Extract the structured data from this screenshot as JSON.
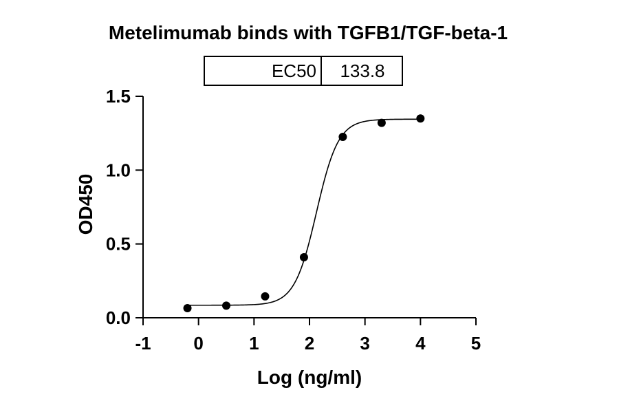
{
  "chart_data": {
    "type": "scatter",
    "title": "Metelimumab binds with TGFB1/TGF-beta-1",
    "xlabel": "Log (ng/ml)",
    "ylabel": "OD450",
    "xlim": [
      -1,
      5
    ],
    "ylim": [
      0,
      1.5
    ],
    "x_ticks": [
      "-1",
      "0",
      "1",
      "2",
      "3",
      "4",
      "5"
    ],
    "y_ticks": [
      "0.0",
      "0.5",
      "1.0",
      "1.5"
    ],
    "points": {
      "x": [
        -0.2,
        0.5,
        1.2,
        1.9,
        2.6,
        3.3,
        4.0
      ],
      "y": [
        0.065,
        0.082,
        0.145,
        0.41,
        1.225,
        1.32,
        1.35
      ]
    },
    "fit": {
      "model": "4PL",
      "bottom": 0.085,
      "top": 1.345,
      "log_ec50": 2.126,
      "hill": 2.2
    },
    "ec50_table": {
      "label": "EC50",
      "value": "133.8"
    },
    "grid": false,
    "colors": {
      "points": "#000000",
      "line": "#000000"
    }
  }
}
